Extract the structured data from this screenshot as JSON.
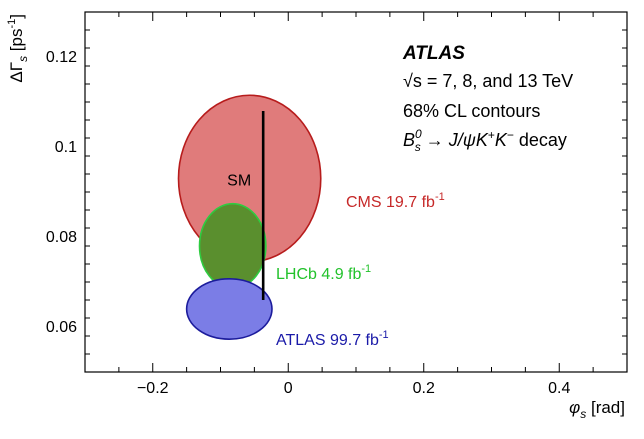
{
  "chart_data": {
    "type": "contour",
    "xlabel": "φ_s [rad]",
    "ylabel": "ΔΓ_s [ps^-1]",
    "xlim": [
      -0.3,
      0.5
    ],
    "ylim": [
      0.05,
      0.13
    ],
    "x_ticks": [
      -0.2,
      0,
      0.2,
      0.4
    ],
    "x_tick_labels": [
      "−0.2",
      "0",
      "0.2",
      "0.4"
    ],
    "y_ticks": [
      0.06,
      0.08,
      0.1,
      0.12
    ],
    "y_tick_labels": [
      "0.06",
      "0.08",
      "0.1",
      "0.12"
    ],
    "annotations": {
      "experiment": "ATLAS",
      "energy": "√s = 7, 8, and 13 TeV",
      "contour_level": "68% CL contours",
      "decay": "B_s^0 → J/ψK+K− decay"
    },
    "series": [
      {
        "name": "CMS",
        "label": "CMS 19.7 fb-1",
        "center": [
          -0.057,
          0.093
        ],
        "semi_axes": [
          0.105,
          0.0185
        ],
        "fill": "#e07b7b",
        "stroke": "#b71c1c",
        "label_color": "#c62828"
      },
      {
        "name": "LHCb",
        "label": "LHCb 4.9 fb-1",
        "center": [
          -0.082,
          0.078
        ],
        "semi_axes": [
          0.049,
          0.0094
        ],
        "fill": "#5a8f2e",
        "stroke": "#2ecc40",
        "label_color": "#22c22b"
      },
      {
        "name": "ATLAS",
        "label": "ATLAS 99.7 fb-1",
        "center": [
          -0.087,
          0.064
        ],
        "semi_axes": [
          0.063,
          0.0067
        ],
        "fill": "#7b7de6",
        "stroke": "#1c1c9c",
        "label_color": "#1a1aa8"
      }
    ],
    "sm_prediction": {
      "label": "SM",
      "phi_s": -0.037,
      "dgamma_range": [
        0.066,
        0.108
      ]
    }
  }
}
